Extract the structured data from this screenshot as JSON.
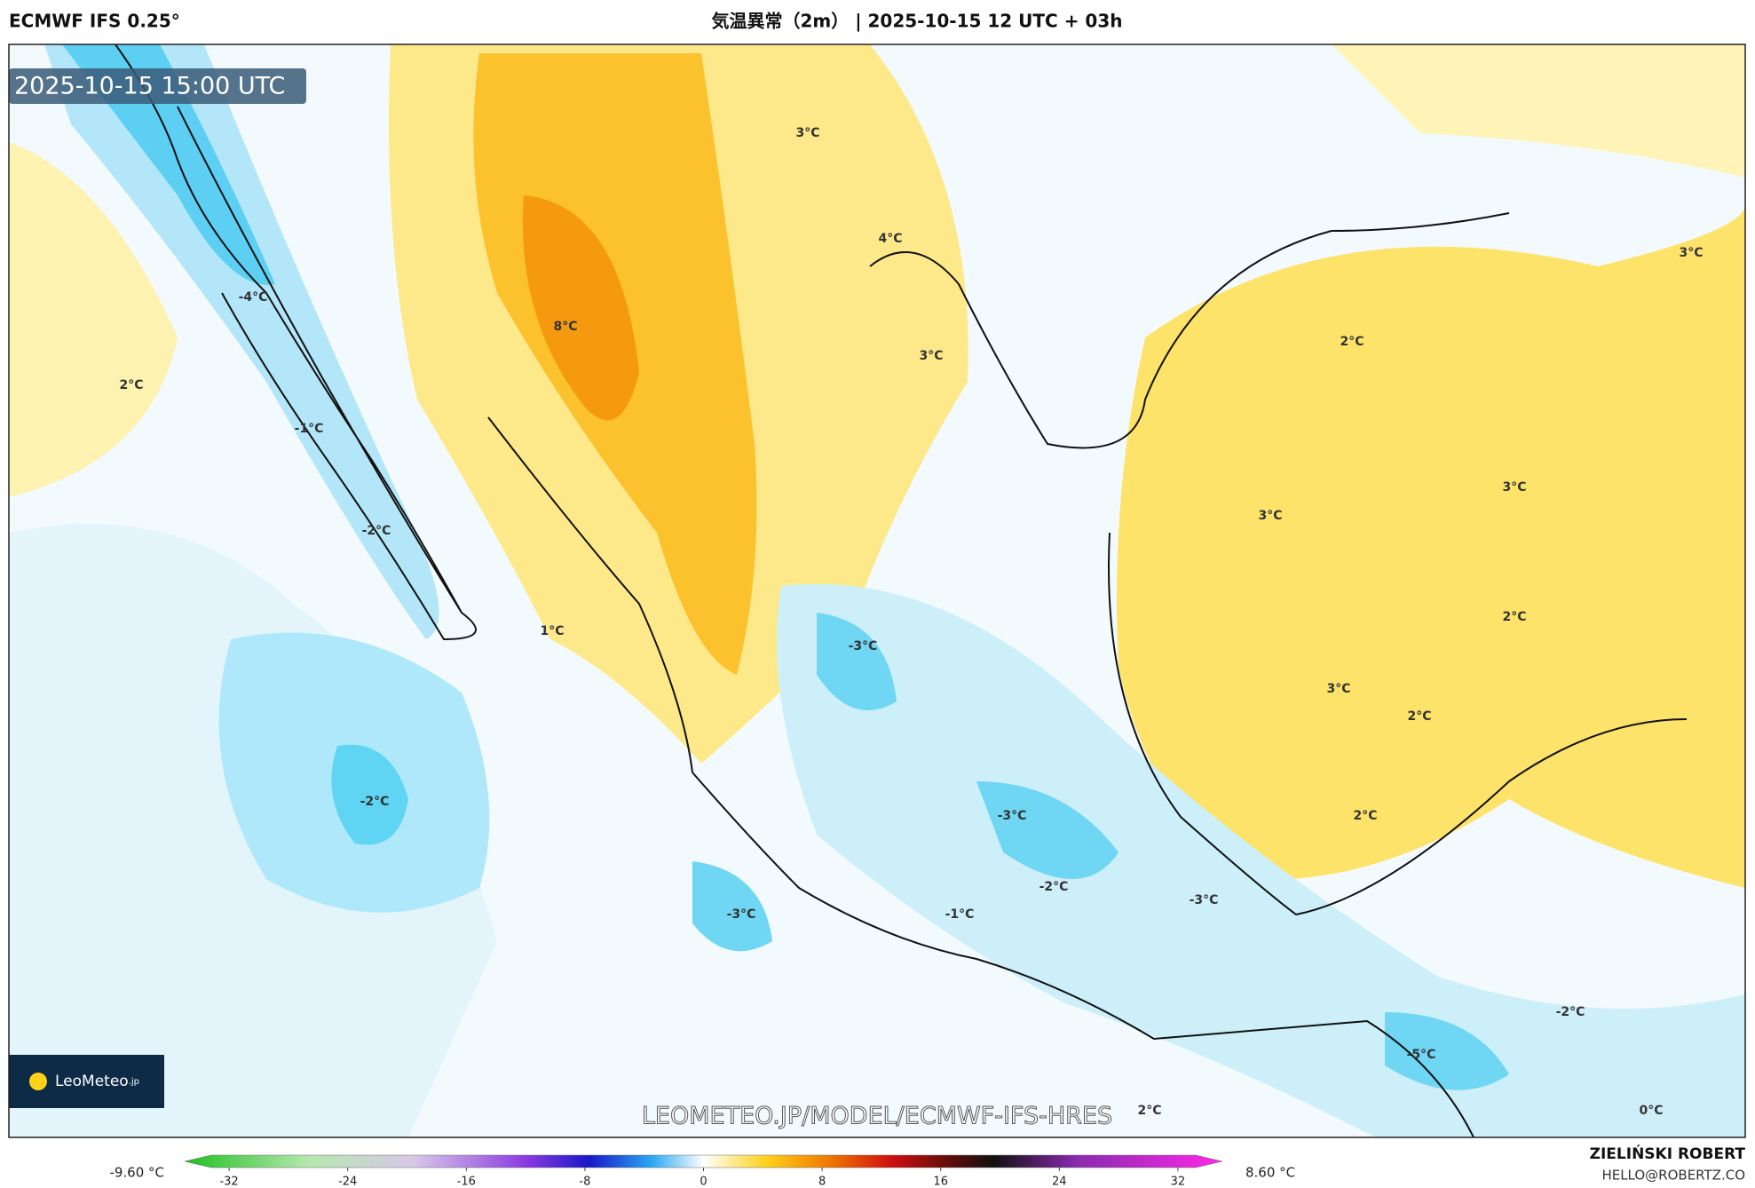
{
  "header": {
    "model": "ECMWF IFS 0.25°",
    "title": "気温異常（2m） | 2025-10-15 12 UTC + 03h"
  },
  "map": {
    "timestamp": "2025-10-15 15:00 UTC",
    "watermark": "LEOMETEO.JP/MODEL/ECMWF-IFS-HRES",
    "logo": "LeoMeteo",
    "logo_suffix": ".jp",
    "contour_labels": [
      "3°C",
      "4°C",
      "-4°C",
      "8°C",
      "2°C",
      "3°C",
      "-1°C",
      "2°C",
      "3°C",
      "3°C",
      "3°C",
      "-2°C",
      "1°C",
      "-3°C",
      "2°C",
      "3°C",
      "2°C",
      "-2°C",
      "-3°C",
      "2°C",
      "-2°C",
      "-3°C",
      "-3°C",
      "-1°C",
      "-2°C",
      "-5°C",
      "2°C",
      "0°C"
    ]
  },
  "colorbar": {
    "min_label": "-9.60 °C",
    "max_label": "8.60 °C",
    "lim": [
      -35,
      35
    ],
    "ticks": [
      -32,
      -24,
      -16,
      -8,
      0,
      8,
      16,
      24,
      32
    ]
  },
  "footer": {
    "author": "ZIELIŃSKI ROBERT",
    "email": "HELLO@ROBERTZ.CO"
  }
}
